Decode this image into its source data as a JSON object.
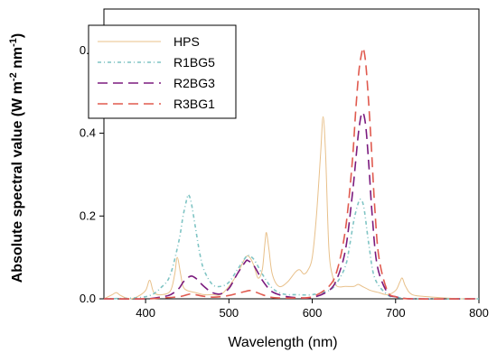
{
  "chart_data": {
    "type": "line",
    "xlabel": "Wavelength (nm)",
    "ylabel_parts": [
      "Absolute spectral value (W m",
      "-2",
      " nm",
      "-1",
      ")"
    ],
    "xlim": [
      350,
      800
    ],
    "ylim": [
      0,
      0.7
    ],
    "xticks": [
      400,
      500,
      600,
      700,
      800
    ],
    "yticks": [
      0.0,
      0.2,
      0.4,
      0.6
    ],
    "ytick_labels": [
      "0.0",
      "0.2",
      "0.4",
      "0.6"
    ],
    "legend_position": "top-left",
    "grid": false,
    "series": [
      {
        "name": "HPS",
        "color": "#e8c08a",
        "dash": "none",
        "x": [
          350,
          360,
          365,
          370,
          380,
          390,
          400,
          405,
          410,
          420,
          430,
          435,
          438,
          442,
          445,
          450,
          460,
          470,
          480,
          490,
          500,
          510,
          520,
          525,
          530,
          535,
          540,
          543,
          545,
          548,
          552,
          560,
          570,
          580,
          585,
          590,
          595,
          600,
          605,
          610,
          613,
          616,
          620,
          625,
          630,
          640,
          650,
          655,
          660,
          665,
          670,
          680,
          690,
          700,
          705,
          708,
          712,
          720,
          740,
          760,
          780,
          800
        ],
        "y": [
          0.0,
          0.01,
          0.015,
          0.008,
          0.0,
          0.005,
          0.02,
          0.045,
          0.015,
          0.01,
          0.02,
          0.06,
          0.1,
          0.06,
          0.03,
          0.02,
          0.015,
          0.01,
          0.01,
          0.01,
          0.03,
          0.06,
          0.1,
          0.1,
          0.08,
          0.05,
          0.07,
          0.13,
          0.16,
          0.12,
          0.06,
          0.03,
          0.04,
          0.065,
          0.07,
          0.06,
          0.07,
          0.1,
          0.2,
          0.35,
          0.44,
          0.35,
          0.12,
          0.05,
          0.03,
          0.03,
          0.03,
          0.035,
          0.03,
          0.025,
          0.02,
          0.015,
          0.01,
          0.02,
          0.04,
          0.05,
          0.03,
          0.01,
          0.005,
          0.002,
          0.0,
          0.0
        ]
      },
      {
        "name": "R1BG5",
        "color": "#7fc4c4",
        "dash": "4,3,1,3",
        "x": [
          350,
          400,
          420,
          430,
          440,
          445,
          450,
          452,
          455,
          460,
          465,
          470,
          480,
          490,
          500,
          510,
          520,
          523,
          530,
          540,
          550,
          560,
          570,
          580,
          600,
          620,
          630,
          640,
          645,
          650,
          655,
          658,
          662,
          668,
          675,
          690,
          700,
          720,
          800
        ],
        "y": [
          0.0,
          0.005,
          0.03,
          0.06,
          0.14,
          0.2,
          0.245,
          0.25,
          0.23,
          0.17,
          0.11,
          0.07,
          0.035,
          0.03,
          0.04,
          0.07,
          0.1,
          0.105,
          0.095,
          0.06,
          0.03,
          0.015,
          0.01,
          0.01,
          0.01,
          0.02,
          0.04,
          0.08,
          0.13,
          0.19,
          0.23,
          0.24,
          0.22,
          0.13,
          0.05,
          0.01,
          0.005,
          0.0,
          0.0
        ]
      },
      {
        "name": "R2BG3",
        "color": "#7b1b7e",
        "dash": "11,6",
        "x": [
          350,
          400,
          420,
          430,
          440,
          445,
          450,
          455,
          460,
          465,
          470,
          480,
          490,
          500,
          510,
          520,
          523,
          530,
          540,
          550,
          560,
          570,
          580,
          600,
          620,
          630,
          640,
          648,
          652,
          656,
          660,
          664,
          668,
          672,
          678,
          690,
          700,
          720,
          800
        ],
        "y": [
          0.0,
          0.0,
          0.005,
          0.01,
          0.025,
          0.04,
          0.05,
          0.055,
          0.05,
          0.04,
          0.03,
          0.015,
          0.012,
          0.025,
          0.06,
          0.09,
          0.092,
          0.08,
          0.045,
          0.02,
          0.01,
          0.005,
          0.003,
          0.003,
          0.02,
          0.05,
          0.12,
          0.25,
          0.33,
          0.41,
          0.45,
          0.42,
          0.32,
          0.2,
          0.08,
          0.015,
          0.005,
          0.0,
          0.0
        ]
      },
      {
        "name": "R3BG1",
        "color": "#e05a4f",
        "dash": "11,6",
        "x": [
          350,
          400,
          420,
          440,
          450,
          455,
          460,
          470,
          480,
          490,
          500,
          510,
          520,
          525,
          530,
          540,
          550,
          560,
          580,
          600,
          620,
          630,
          640,
          648,
          652,
          656,
          660,
          662,
          665,
          670,
          675,
          680,
          690,
          700,
          720,
          800
        ],
        "y": [
          0.0,
          0.0,
          0.002,
          0.005,
          0.01,
          0.012,
          0.01,
          0.006,
          0.004,
          0.005,
          0.008,
          0.013,
          0.018,
          0.02,
          0.018,
          0.01,
          0.004,
          0.002,
          0.002,
          0.005,
          0.03,
          0.07,
          0.17,
          0.33,
          0.45,
          0.55,
          0.6,
          0.6,
          0.55,
          0.4,
          0.22,
          0.1,
          0.02,
          0.005,
          0.0,
          0.0
        ]
      }
    ]
  }
}
